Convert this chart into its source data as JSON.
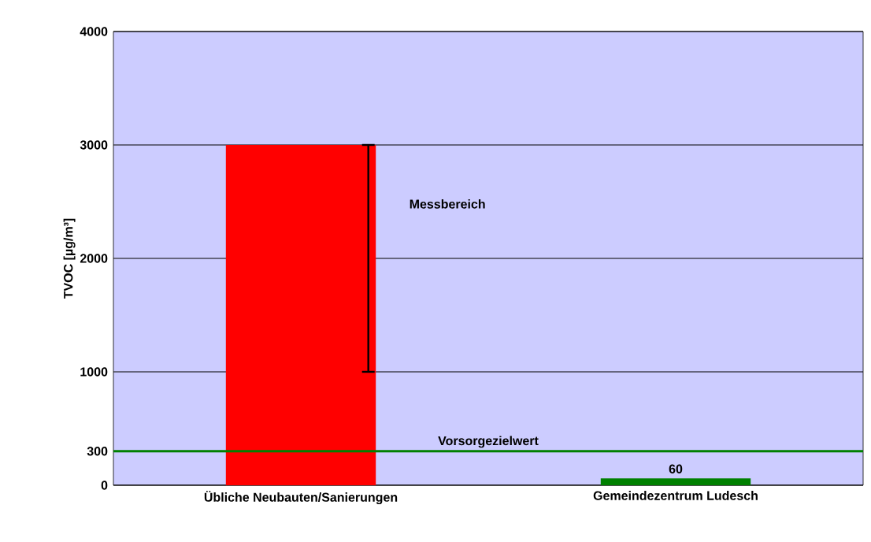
{
  "chart_data": {
    "type": "bar",
    "ylabel": "TVOC [µg/m³]",
    "categories": [
      "Übliche Neubauten/Sanierungen",
      "Gemeindezentrum Ludesch"
    ],
    "values": [
      3000,
      60
    ],
    "colors": [
      "#ff0000",
      "#008000"
    ],
    "errors": [
      [
        1000,
        3000
      ],
      null
    ],
    "value_labels": [
      null,
      "60"
    ],
    "ylim": [
      0,
      4000
    ],
    "yticks": [
      0,
      300,
      1000,
      2000,
      3000,
      4000
    ],
    "grid": "y",
    "ref_lines": [
      {
        "axis": "y",
        "value": 300,
        "label": "Vorsorgezielwert",
        "color": "#008000"
      }
    ],
    "annotations": [
      "Messbereich"
    ]
  }
}
